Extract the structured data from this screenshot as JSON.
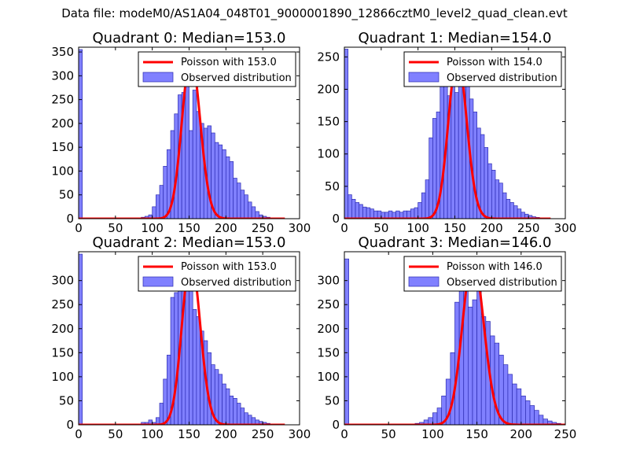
{
  "figure": {
    "suptitle": "Data file: modeM0/AS1A04_048T01_9000001890_12866cztM0_level2_quad_clean.evt"
  },
  "colors": {
    "bar_fill": "#8080ff",
    "bar_edge": "#2b2bb0",
    "poisson_line": "#ff0000",
    "legend_border": "#000000"
  },
  "chart_data": [
    {
      "type": "bar",
      "title": "Quadrant 0: Median=153.0",
      "xlim": [
        0,
        300
      ],
      "ylim": [
        0,
        360
      ],
      "xticks": [
        0,
        50,
        100,
        150,
        200,
        250,
        300
      ],
      "yticks": [
        0,
        50,
        100,
        150,
        200,
        250,
        300,
        350
      ],
      "legend": {
        "placement": "top-right",
        "line_label": "Poisson with 153.0",
        "bar_label": "Observed distribution"
      },
      "median": 153.0,
      "poisson_peak": 340,
      "bin_width": 5,
      "histogram": [
        [
          0,
          355
        ],
        [
          85,
          3
        ],
        [
          90,
          5
        ],
        [
          95,
          8
        ],
        [
          100,
          25
        ],
        [
          105,
          50
        ],
        [
          110,
          70
        ],
        [
          115,
          110
        ],
        [
          120,
          145
        ],
        [
          125,
          185
        ],
        [
          130,
          220
        ],
        [
          135,
          260
        ],
        [
          140,
          265
        ],
        [
          145,
          300
        ],
        [
          150,
          185
        ],
        [
          155,
          270
        ],
        [
          160,
          225
        ],
        [
          165,
          200
        ],
        [
          170,
          190
        ],
        [
          175,
          195
        ],
        [
          180,
          180
        ],
        [
          185,
          160
        ],
        [
          190,
          155
        ],
        [
          195,
          145
        ],
        [
          200,
          130
        ],
        [
          205,
          120
        ],
        [
          210,
          85
        ],
        [
          215,
          75
        ],
        [
          220,
          60
        ],
        [
          225,
          50
        ],
        [
          230,
          35
        ],
        [
          235,
          25
        ],
        [
          240,
          15
        ],
        [
          245,
          8
        ],
        [
          250,
          5
        ],
        [
          255,
          3
        ]
      ]
    },
    {
      "type": "bar",
      "title": "Quadrant 1: Median=154.0",
      "xlim": [
        0,
        300
      ],
      "ylim": [
        0,
        265
      ],
      "xticks": [
        0,
        50,
        100,
        150,
        200,
        250,
        300
      ],
      "yticks": [
        0,
        50,
        100,
        150,
        200,
        250
      ],
      "legend": {
        "placement": "top-right",
        "line_label": "Poisson with 154.0",
        "bar_label": "Observed distribution"
      },
      "median": 154.0,
      "poisson_peak": 250,
      "bin_width": 5,
      "histogram": [
        [
          0,
          262
        ],
        [
          5,
          37
        ],
        [
          10,
          30
        ],
        [
          15,
          25
        ],
        [
          20,
          22
        ],
        [
          25,
          18
        ],
        [
          30,
          17
        ],
        [
          35,
          15
        ],
        [
          40,
          12
        ],
        [
          45,
          12
        ],
        [
          50,
          10
        ],
        [
          55,
          10
        ],
        [
          60,
          12
        ],
        [
          65,
          10
        ],
        [
          70,
          12
        ],
        [
          75,
          10
        ],
        [
          80,
          12
        ],
        [
          85,
          12
        ],
        [
          90,
          15
        ],
        [
          95,
          17
        ],
        [
          100,
          25
        ],
        [
          105,
          40
        ],
        [
          110,
          60
        ],
        [
          115,
          125
        ],
        [
          120,
          155
        ],
        [
          125,
          165
        ],
        [
          130,
          205
        ],
        [
          135,
          215
        ],
        [
          140,
          190
        ],
        [
          145,
          205
        ],
        [
          150,
          195
        ],
        [
          155,
          225
        ],
        [
          160,
          220
        ],
        [
          165,
          205
        ],
        [
          170,
          185
        ],
        [
          175,
          165
        ],
        [
          180,
          140
        ],
        [
          185,
          130
        ],
        [
          190,
          110
        ],
        [
          195,
          85
        ],
        [
          200,
          75
        ],
        [
          205,
          60
        ],
        [
          210,
          55
        ],
        [
          215,
          40
        ],
        [
          220,
          30
        ],
        [
          225,
          25
        ],
        [
          230,
          20
        ],
        [
          235,
          15
        ],
        [
          240,
          10
        ],
        [
          245,
          7
        ],
        [
          250,
          5
        ],
        [
          255,
          3
        ],
        [
          260,
          2
        ]
      ]
    },
    {
      "type": "bar",
      "title": "Quadrant 2: Median=153.0",
      "xlim": [
        0,
        300
      ],
      "ylim": [
        0,
        360
      ],
      "xticks": [
        0,
        50,
        100,
        150,
        200,
        250,
        300
      ],
      "yticks": [
        0,
        50,
        100,
        150,
        200,
        250,
        300
      ],
      "legend": {
        "placement": "top-right",
        "line_label": "Poisson with 153.0",
        "bar_label": "Observed distribution"
      },
      "median": 153.0,
      "poisson_peak": 345,
      "bin_width": 5,
      "histogram": [
        [
          0,
          355
        ],
        [
          85,
          5
        ],
        [
          90,
          5
        ],
        [
          95,
          10
        ],
        [
          100,
          5
        ],
        [
          105,
          15
        ],
        [
          110,
          45
        ],
        [
          115,
          95
        ],
        [
          120,
          145
        ],
        [
          125,
          265
        ],
        [
          130,
          275
        ],
        [
          135,
          290
        ],
        [
          140,
          300
        ],
        [
          145,
          300
        ],
        [
          150,
          295
        ],
        [
          155,
          240
        ],
        [
          160,
          225
        ],
        [
          165,
          195
        ],
        [
          170,
          175
        ],
        [
          175,
          150
        ],
        [
          180,
          125
        ],
        [
          185,
          115
        ],
        [
          190,
          105
        ],
        [
          195,
          85
        ],
        [
          200,
          75
        ],
        [
          205,
          60
        ],
        [
          210,
          55
        ],
        [
          215,
          45
        ],
        [
          220,
          35
        ],
        [
          225,
          25
        ],
        [
          230,
          20
        ],
        [
          235,
          15
        ],
        [
          240,
          10
        ],
        [
          245,
          7
        ],
        [
          250,
          5
        ],
        [
          255,
          3
        ]
      ]
    },
    {
      "type": "bar",
      "title": "Quadrant 3: Median=146.0",
      "xlim": [
        0,
        250
      ],
      "ylim": [
        0,
        360
      ],
      "xticks": [
        0,
        50,
        100,
        150,
        200,
        250
      ],
      "yticks": [
        0,
        50,
        100,
        150,
        200,
        250,
        300
      ],
      "legend": {
        "placement": "top-right",
        "line_label": "Poisson with 146.0",
        "bar_label": "Observed distribution"
      },
      "median": 146.0,
      "poisson_peak": 345,
      "bin_width": 5,
      "histogram": [
        [
          0,
          345
        ],
        [
          80,
          3
        ],
        [
          85,
          5
        ],
        [
          90,
          10
        ],
        [
          95,
          15
        ],
        [
          100,
          25
        ],
        [
          105,
          35
        ],
        [
          110,
          60
        ],
        [
          115,
          95
        ],
        [
          120,
          150
        ],
        [
          125,
          255
        ],
        [
          130,
          310
        ],
        [
          135,
          300
        ],
        [
          140,
          245
        ],
        [
          145,
          260
        ],
        [
          150,
          285
        ],
        [
          155,
          225
        ],
        [
          160,
          215
        ],
        [
          165,
          185
        ],
        [
          170,
          170
        ],
        [
          175,
          145
        ],
        [
          180,
          125
        ],
        [
          185,
          105
        ],
        [
          190,
          85
        ],
        [
          195,
          75
        ],
        [
          200,
          60
        ],
        [
          205,
          50
        ],
        [
          210,
          40
        ],
        [
          215,
          30
        ],
        [
          220,
          20
        ],
        [
          225,
          12
        ],
        [
          230,
          8
        ],
        [
          235,
          5
        ],
        [
          240,
          3
        ]
      ]
    }
  ]
}
